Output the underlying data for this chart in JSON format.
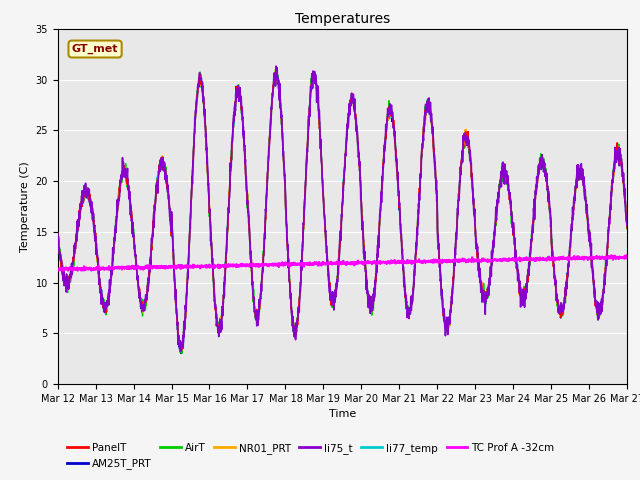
{
  "title": "Temperatures",
  "xlabel": "Time",
  "ylabel": "Temperature (C)",
  "ylim": [
    0,
    35
  ],
  "xlim_days": [
    12,
    27
  ],
  "series": {
    "PanelT": {
      "color": "#ff0000",
      "lw": 1.0,
      "zorder": 3
    },
    "AM25T_PRT": {
      "color": "#0000cc",
      "lw": 1.0,
      "zorder": 3
    },
    "AirT": {
      "color": "#00cc00",
      "lw": 1.0,
      "zorder": 3
    },
    "NR01_PRT": {
      "color": "#ffaa00",
      "lw": 1.0,
      "zorder": 3
    },
    "li75_t": {
      "color": "#8800cc",
      "lw": 1.2,
      "zorder": 4
    },
    "li77_temp": {
      "color": "#00cccc",
      "lw": 1.0,
      "zorder": 3
    },
    "TC Prof A -32cm": {
      "color": "#ff00ff",
      "lw": 1.5,
      "zorder": 5
    }
  },
  "annotation_text": "GT_met",
  "annotation_facecolor": "#ffffcc",
  "annotation_edgecolor": "#aa8800",
  "bg_color": "#e8e8e8",
  "grid_color": "#ffffff",
  "fig_bg_color": "#f5f5f5",
  "tick_label_size": 7,
  "day_peaks": [
    19,
    21,
    22,
    30,
    29,
    30.5,
    30.5,
    28,
    27,
    27.5,
    24.5,
    21,
    22,
    21,
    23
  ],
  "night_mins": [
    10,
    7.5,
    7.5,
    3.5,
    5.5,
    6.5,
    5,
    8,
    7.5,
    7,
    5.5,
    8.5,
    8.5,
    7,
    7
  ]
}
